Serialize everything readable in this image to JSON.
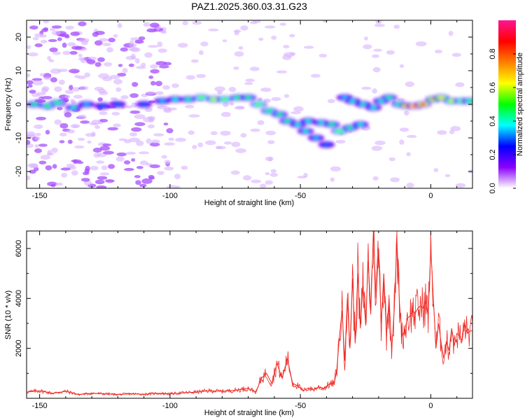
{
  "title": "PAZ1.2025.360.03.31.G23",
  "chart_data": [
    {
      "type": "heatmap",
      "xlabel": "Height of straight line (km)",
      "ylabel": "Frequency (Hz)",
      "xlim": [
        -155,
        16
      ],
      "ylim": [
        -25,
        25
      ],
      "xticks": [
        -150,
        -100,
        -50,
        0
      ],
      "yticks": [
        -20,
        -10,
        0,
        10,
        20
      ],
      "colorbar": {
        "label": "Normalized spectral amplitude",
        "range": [
          0,
          1
        ],
        "ticks": [
          "0.0",
          "0.2",
          "0.4",
          "0.6",
          "0.8"
        ],
        "tick_values": [
          0,
          0.2,
          0.4,
          0.6,
          0.8
        ],
        "colormap": [
          "#ffffff",
          "#8a00ff",
          "#0000ff",
          "#00ffff",
          "#00ff00",
          "#ffff00",
          "#ff7f00",
          "#ff0000",
          "#ff1493"
        ]
      },
      "ridge": [
        {
          "x": -152,
          "y": 0,
          "z": 0.45
        },
        {
          "x": -147,
          "y": -0.5,
          "z": 0.5
        },
        {
          "x": -143,
          "y": 0.5,
          "z": 0.5
        },
        {
          "x": -137,
          "y": -1,
          "z": 0.4
        },
        {
          "x": -132,
          "y": 0,
          "z": 0.35
        },
        {
          "x": -126,
          "y": -0.5,
          "z": 0.3
        },
        {
          "x": -120,
          "y": 0,
          "z": 0.3
        },
        {
          "x": -110,
          "y": 0,
          "z": 0.3
        },
        {
          "x": -103,
          "y": 1,
          "z": 0.35
        },
        {
          "x": -98,
          "y": 1.5,
          "z": 0.4
        },
        {
          "x": -93,
          "y": 1.5,
          "z": 0.45
        },
        {
          "x": -88,
          "y": 2,
          "z": 0.55
        },
        {
          "x": -83,
          "y": 1.5,
          "z": 0.6
        },
        {
          "x": -79,
          "y": 1.5,
          "z": 0.55
        },
        {
          "x": -74,
          "y": 2,
          "z": 0.5
        },
        {
          "x": -70,
          "y": 2,
          "z": 0.45
        },
        {
          "x": -66,
          "y": 0,
          "z": 0.55
        },
        {
          "x": -62,
          "y": -2,
          "z": 0.5
        },
        {
          "x": -58,
          "y": -3,
          "z": 0.45
        },
        {
          "x": -55,
          "y": -5,
          "z": 0.45
        },
        {
          "x": -51,
          "y": -6,
          "z": 0.4
        },
        {
          "x": -48,
          "y": -8,
          "z": 0.4
        },
        {
          "x": -44,
          "y": -10,
          "z": 0.35
        },
        {
          "x": -40,
          "y": -12,
          "z": 0.3
        },
        {
          "x": -47,
          "y": -5,
          "z": 0.4
        },
        {
          "x": -42,
          "y": -5.5,
          "z": 0.4
        },
        {
          "x": -38,
          "y": -6,
          "z": 0.45
        },
        {
          "x": -35,
          "y": -8,
          "z": 0.55
        },
        {
          "x": -31,
          "y": -7,
          "z": 0.45
        },
        {
          "x": -27,
          "y": -6,
          "z": 0.4
        },
        {
          "x": -33,
          "y": 2,
          "z": 0.35
        },
        {
          "x": -30,
          "y": 1,
          "z": 0.4
        },
        {
          "x": -26,
          "y": 0,
          "z": 0.4
        },
        {
          "x": -22,
          "y": -1,
          "z": 0.4
        },
        {
          "x": -19,
          "y": 1,
          "z": 0.4
        },
        {
          "x": -16,
          "y": 2,
          "z": 0.45
        },
        {
          "x": -12,
          "y": 0,
          "z": 0.5
        },
        {
          "x": -9,
          "y": -0.5,
          "z": 0.85
        },
        {
          "x": -6,
          "y": -0.5,
          "z": 0.9
        },
        {
          "x": -3,
          "y": 0,
          "z": 0.85
        },
        {
          "x": 1,
          "y": 1.5,
          "z": 0.7
        },
        {
          "x": 4,
          "y": 2,
          "z": 0.65
        },
        {
          "x": 8,
          "y": 1,
          "z": 0.6
        },
        {
          "x": 12,
          "y": 1,
          "z": 0.55
        },
        {
          "x": 15,
          "y": 1,
          "z": 0.5
        }
      ]
    },
    {
      "type": "line",
      "xlabel": "Height of straight line (km)",
      "ylabel": "SNR (10 * v/v)",
      "xlim": [
        -155,
        16
      ],
      "ylim": [
        0,
        6700
      ],
      "xticks": [
        -150,
        -100,
        -50,
        0
      ],
      "yticks": [
        2000,
        4000,
        6000
      ],
      "color": "#ee2a24",
      "x": [
        -155,
        -150,
        -145,
        -140,
        -135,
        -130,
        -125,
        -120,
        -115,
        -110,
        -105,
        -100,
        -95,
        -90,
        -85,
        -80,
        -75,
        -70,
        -67,
        -65,
        -63,
        -61,
        -59,
        -57,
        -55,
        -53,
        -51,
        -49,
        -47,
        -45,
        -43,
        -41,
        -39,
        -37,
        -36,
        -35,
        -34,
        -33,
        -32,
        -31,
        -30,
        -29,
        -28,
        -27,
        -26,
        -25,
        -24,
        -23,
        -22,
        -21,
        -20,
        -19,
        -18,
        -17,
        -16,
        -15,
        -14,
        -13,
        -12,
        -11,
        -10,
        -9,
        -8,
        -7,
        -6,
        -5,
        -4,
        -3,
        -2,
        -1,
        0,
        1,
        2,
        3,
        4,
        5,
        6,
        7,
        8,
        9,
        10,
        11,
        12,
        13,
        14,
        15,
        16
      ],
      "y": [
        250,
        300,
        200,
        280,
        150,
        200,
        180,
        150,
        180,
        160,
        200,
        180,
        220,
        250,
        300,
        280,
        320,
        400,
        250,
        800,
        1000,
        600,
        1400,
        800,
        1600,
        600,
        500,
        300,
        400,
        350,
        450,
        400,
        550,
        600,
        1200,
        2500,
        3500,
        1500,
        4000,
        2000,
        4800,
        2200,
        5000,
        2800,
        4500,
        3000,
        5500,
        3500,
        6700,
        4000,
        6000,
        3000,
        5000,
        2500,
        4000,
        2000,
        3500,
        6300,
        3800,
        2500,
        2700,
        3200,
        3300,
        3500,
        3400,
        3600,
        3700,
        3600,
        3900,
        3300,
        6000,
        4000,
        2000,
        3000,
        2200,
        1600,
        2300,
        1900,
        2800,
        2100,
        2600,
        2500,
        2300,
        3000,
        2600,
        2700,
        2700
      ]
    }
  ]
}
